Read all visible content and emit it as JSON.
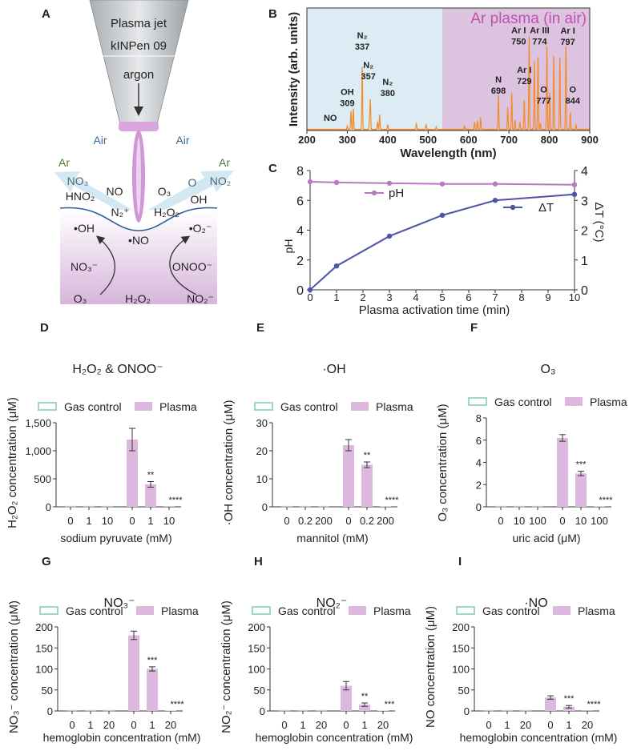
{
  "colors": {
    "spectrum": "#f28c28",
    "uv_region": "#dcecf5",
    "vis_region": "#dcc3df",
    "ph": "#b77cc0",
    "dt": "#4e55a8",
    "plasma_bar": "#dcb8df",
    "gas_control": "#9fd8c8",
    "ar_text": "#4a7a3a",
    "air_text": "#3a6a9a",
    "ar_plasma_text": "#c44fb0"
  },
  "panel_a": {
    "letter": "A",
    "nozzle_line1": "Plasma jet",
    "nozzle_line2": "kINPen 09",
    "gas": "argon",
    "air_left": "Air",
    "air_right": "Air",
    "ar_left": "Ar",
    "ar_right": "Ar",
    "gas_species": [
      "NO₃",
      "HNO₂",
      "NO",
      "N₂⁺",
      "O₃",
      "H₂O₂",
      "O",
      "NO₂",
      "OH"
    ],
    "liquid_species": [
      "•OH",
      "•NO",
      "•O₂⁻",
      "NO₃⁻",
      "ONOO⁻",
      "O₃",
      "H₂O₂",
      "NO₂⁻"
    ]
  },
  "chart_data": [
    {
      "panel": "B",
      "type": "line",
      "title": "",
      "xlabel": "Wavelength (nm)",
      "ylabel": "Intensity (arb. units)",
      "annotation": "Ar plasma (in air)",
      "xlim": [
        200,
        900
      ],
      "xticks": [
        200,
        300,
        400,
        500,
        600,
        700,
        800,
        900
      ],
      "shaded_regions": [
        {
          "from": 200,
          "to": 535,
          "color": "#dcecf5"
        },
        {
          "from": 535,
          "to": 900,
          "color": "#dcc3df"
        }
      ],
      "peaks": [
        [
          300,
          0.03
        ],
        [
          309,
          0.15
        ],
        [
          315,
          0.17
        ],
        [
          337,
          0.51
        ],
        [
          355,
          0.08
        ],
        [
          357,
          0.24
        ],
        [
          375,
          0.06
        ],
        [
          380,
          0.12
        ],
        [
          400,
          0.04
        ],
        [
          471,
          0.05
        ],
        [
          495,
          0.04
        ],
        [
          520,
          0.02
        ],
        [
          590,
          0.03
        ],
        [
          615,
          0.06
        ],
        [
          622,
          0.07
        ],
        [
          630,
          0.1
        ],
        [
          674,
          0.28
        ],
        [
          697,
          0.18
        ],
        [
          707,
          0.3
        ],
        [
          715,
          0.08
        ],
        [
          727,
          0.06
        ],
        [
          738,
          0.24
        ],
        [
          750,
          0.76
        ],
        [
          763,
          0.56
        ],
        [
          772,
          0.59
        ],
        [
          778,
          0.05
        ],
        [
          794,
          0.68
        ],
        [
          801,
          0.3
        ],
        [
          811,
          0.6
        ],
        [
          826,
          0.59
        ],
        [
          841,
          0.68
        ],
        [
          852,
          0.14
        ],
        [
          866,
          0.04
        ]
      ],
      "peak_labels": [
        {
          "species": "NO",
          "wl": "",
          "x": 258,
          "y": 0.08
        },
        {
          "species": "OH",
          "wl": "309",
          "x": 300,
          "y": 0.2
        },
        {
          "species": "N₂",
          "wl": "337",
          "x": 337,
          "y": 0.66
        },
        {
          "species": "N₂",
          "wl": "357",
          "x": 360,
          "y": 0.38
        },
        {
          "species": "N₂",
          "wl": "380",
          "x": 388,
          "y": 0.28
        },
        {
          "species": "N",
          "wl": "698",
          "x": 686,
          "y": 0.3
        },
        {
          "species": "Ar I",
          "wl": "729",
          "x": 730,
          "y": 0.38
        },
        {
          "species": "Ar I",
          "wl": "750",
          "x": 740,
          "y": 0.76
        },
        {
          "species": "Ar III",
          "wl": "774",
          "x": 776,
          "y": 0.76
        },
        {
          "species": "Ar I",
          "wl": "797",
          "x": 810,
          "y": 0.7
        },
        {
          "species": "O",
          "wl": "777",
          "x": 786,
          "y": 0.22
        },
        {
          "species": "O",
          "wl": "844",
          "x": 858,
          "y": 0.22
        }
      ]
    },
    {
      "panel": "C",
      "type": "line",
      "xlabel": "Plasma activation time (min)",
      "ylabel": "pH",
      "y2label": "ΔT (°C)",
      "xlim": [
        0,
        10
      ],
      "ylim": [
        0,
        8
      ],
      "y2lim": [
        0,
        4
      ],
      "xticks": [
        0,
        1,
        2,
        3,
        4,
        5,
        6,
        7,
        8,
        9,
        10
      ],
      "yticks": [
        0,
        2,
        4,
        6,
        8
      ],
      "y2ticks": [
        0,
        1,
        2,
        3,
        4
      ],
      "x": [
        0,
        1,
        3,
        5,
        7,
        10
      ],
      "series": [
        {
          "name": "pH",
          "axis": "left",
          "values": [
            7.25,
            7.2,
            7.15,
            7.1,
            7.1,
            7.05
          ]
        },
        {
          "name": "ΔT",
          "axis": "right",
          "values": [
            0,
            0.8,
            1.8,
            2.5,
            3.0,
            3.2
          ]
        }
      ]
    },
    {
      "panel": "D",
      "type": "bar",
      "title": "H₂O₂ & ONOO⁻",
      "ylabel": "H₂O₂ concentration (μM)",
      "xlabel": "sodium pyruvate (mM)",
      "legend": [
        "Gas control",
        "Plasma"
      ],
      "ylim": [
        0,
        1500
      ],
      "yticks": [
        "0",
        "500",
        "1,000",
        "1,500"
      ],
      "ytick_values": [
        0,
        500,
        1000,
        1500
      ],
      "categories": [
        "0",
        "1",
        "10",
        "0",
        "1",
        "10"
      ],
      "gas_control": [
        0,
        0,
        0
      ],
      "plasma": [
        1200,
        400,
        5
      ],
      "plasma_err": [
        200,
        50,
        0
      ],
      "significance": [
        "",
        "**",
        "****"
      ]
    },
    {
      "panel": "E",
      "type": "bar",
      "title": "·OH",
      "ylabel": "·OH concentration (μM)",
      "xlabel": "mannitol (mM)",
      "legend": [
        "Gas control",
        "Plasma"
      ],
      "ylim": [
        0,
        30
      ],
      "yticks": [
        "0",
        "10",
        "20",
        "30"
      ],
      "ytick_values": [
        0,
        10,
        20,
        30
      ],
      "categories": [
        "0",
        "0.2",
        "200",
        "0",
        "0.2",
        "200"
      ],
      "gas_control": [
        0,
        0,
        0
      ],
      "plasma": [
        22,
        15,
        0.2
      ],
      "plasma_err": [
        2,
        1,
        0
      ],
      "significance": [
        "",
        "**",
        "****"
      ]
    },
    {
      "panel": "F",
      "type": "bar",
      "title": "O₃",
      "ylabel": "O₃ concentration (μM)",
      "xlabel": "uric acid (μM)",
      "legend": [
        "Gas control",
        "Plasma"
      ],
      "ylim": [
        0,
        8
      ],
      "yticks": [
        "0",
        "2",
        "4",
        "6",
        "8"
      ],
      "ytick_values": [
        0,
        2,
        4,
        6,
        8
      ],
      "categories": [
        "0",
        "10",
        "100",
        "0",
        "10",
        "100"
      ],
      "gas_control": [
        0,
        0,
        0
      ],
      "plasma": [
        6.2,
        3.0,
        0.05
      ],
      "plasma_err": [
        0.3,
        0.2,
        0
      ],
      "significance": [
        "",
        "***",
        "****"
      ]
    },
    {
      "panel": "G",
      "type": "bar",
      "title": "NO₃⁻",
      "ylabel": "NO₃⁻ concentration (μM)",
      "xlabel": "hemoglobin concentration (mM)",
      "legend": [
        "Gas control",
        "Plasma"
      ],
      "ylim": [
        0,
        200
      ],
      "yticks": [
        "0",
        "50",
        "100",
        "150",
        "200"
      ],
      "ytick_values": [
        0,
        50,
        100,
        150,
        200
      ],
      "categories": [
        "0",
        "1",
        "20",
        "0",
        "1",
        "20"
      ],
      "gas_control": [
        0,
        0,
        0
      ],
      "plasma": [
        180,
        100,
        1
      ],
      "plasma_err": [
        10,
        5,
        0
      ],
      "significance": [
        "",
        "***",
        "****"
      ]
    },
    {
      "panel": "H",
      "type": "bar",
      "title": "NO₂⁻",
      "ylabel": "NO₂⁻ concentration (μM)",
      "xlabel": "hemoglobin concentration (mM)",
      "legend": [
        "Gas control",
        "Plasma"
      ],
      "ylim": [
        0,
        200
      ],
      "yticks": [
        "0",
        "50",
        "100",
        "150",
        "200"
      ],
      "ytick_values": [
        0,
        50,
        100,
        150,
        200
      ],
      "categories": [
        "0",
        "1",
        "20",
        "0",
        "1",
        "20"
      ],
      "gas_control": [
        0,
        0,
        0
      ],
      "plasma": [
        60,
        15,
        1
      ],
      "plasma_err": [
        10,
        4,
        0
      ],
      "significance": [
        "",
        "**",
        "***"
      ]
    },
    {
      "panel": "I",
      "type": "bar",
      "title": "·NO",
      "ylabel": "NO concentration (μM)",
      "xlabel": "hemoglobin concentration (mM)",
      "legend": [
        "Gas control",
        "Plasma"
      ],
      "ylim": [
        0,
        200
      ],
      "yticks": [
        "0",
        "50",
        "100",
        "150",
        "200"
      ],
      "ytick_values": [
        0,
        50,
        100,
        150,
        200
      ],
      "categories": [
        "0",
        "1",
        "20",
        "0",
        "1",
        "20"
      ],
      "gas_control": [
        0,
        0,
        0
      ],
      "plasma": [
        32,
        10,
        0.5
      ],
      "plasma_err": [
        4,
        3,
        0
      ],
      "significance": [
        "",
        "***",
        "****"
      ]
    }
  ]
}
